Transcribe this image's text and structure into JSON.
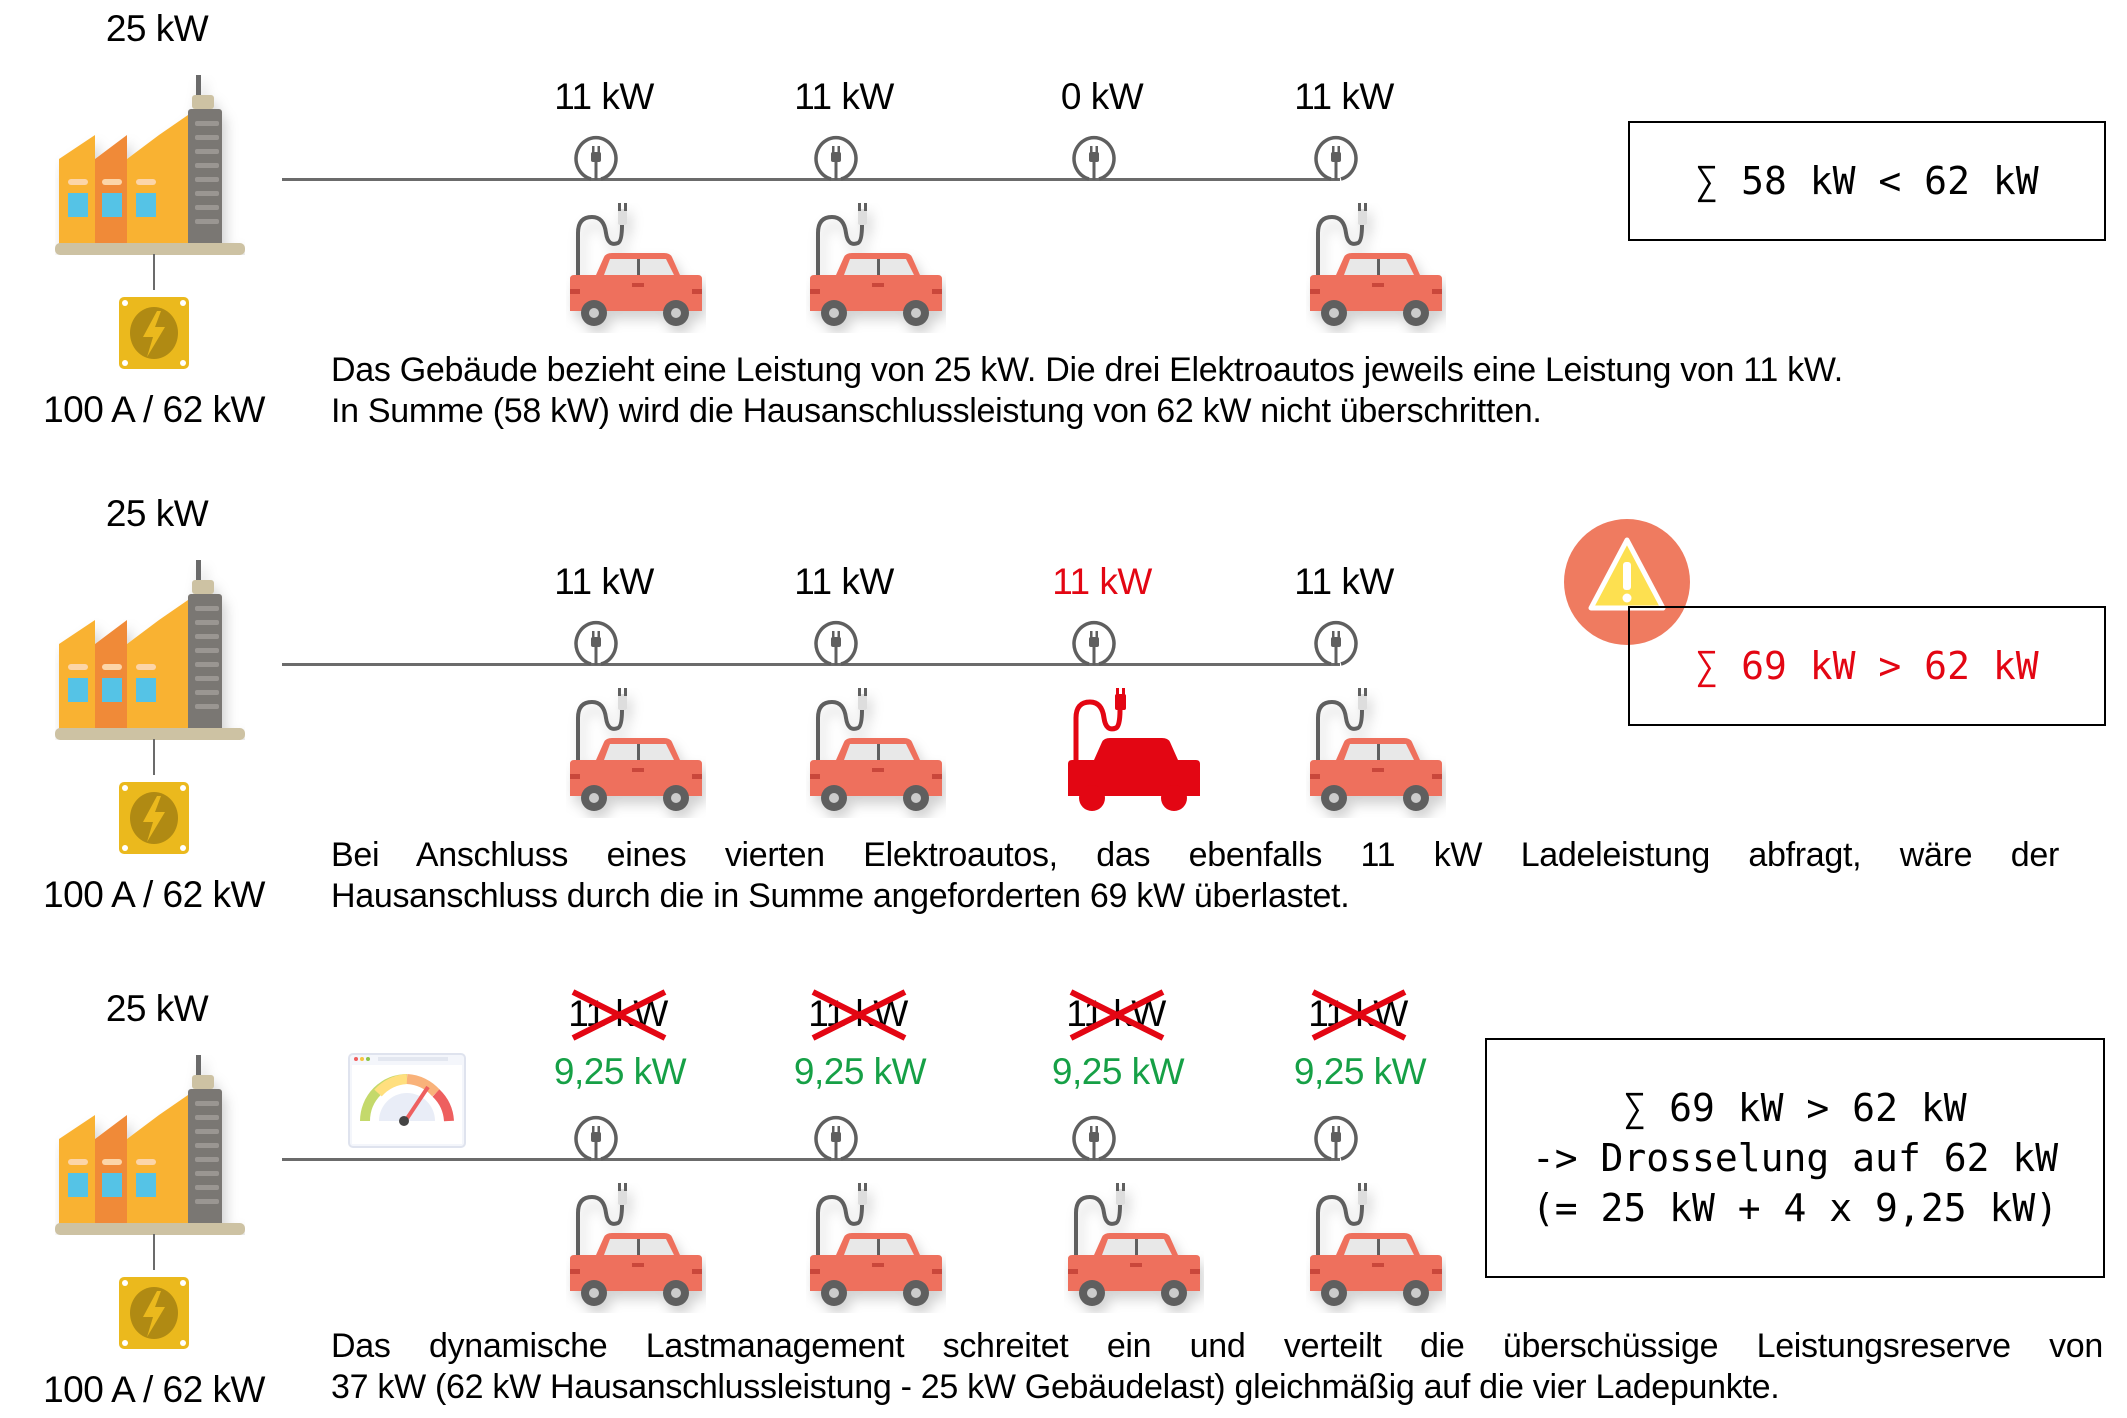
{
  "colors": {
    "car": "#ee6f5d",
    "overload": "#e30613",
    "throttled": "#16a046",
    "warning": "#ef7b60",
    "line": "#6b6b6b"
  },
  "rows": [
    {
      "building_load": "25 kW",
      "connection": "100 A / 62 kW",
      "chargers": [
        {
          "label": "11 kW",
          "state": "normal"
        },
        {
          "label": "11 kW",
          "state": "normal"
        },
        {
          "label": "0 kW",
          "state": "empty"
        },
        {
          "label": "11 kW",
          "state": "normal"
        }
      ],
      "summary": [
        "∑ 58 kW < 62 kW"
      ],
      "text": [
        "Das Gebäude bezieht eine Leistung von 25 kW. Die drei Elektroautos jeweils eine Leistung von 11 kW.",
        "In Summe (58 kW) wird die Hausanschlussleistung von 62 kW nicht überschritten."
      ]
    },
    {
      "building_load": "25 kW",
      "connection": "100 A / 62 kW",
      "chargers": [
        {
          "label": "11 kW",
          "state": "normal"
        },
        {
          "label": "11 kW",
          "state": "normal"
        },
        {
          "label": "11 kW",
          "state": "overload"
        },
        {
          "label": "11 kW",
          "state": "normal"
        }
      ],
      "summary": [
        "∑ 69 kW > 62 kW"
      ],
      "warning_icon": "warning-triangle",
      "text": [
        "Bei Anschluss eines vierten Elektroautos, das ebenfalls 11 kW Ladeleistung abfragt, wäre der",
        "Hausanschluss durch die in Summe angeforderten 69 kW überlastet."
      ]
    },
    {
      "building_load": "25 kW",
      "connection": "100 A / 62 kW",
      "load_manager_icon": "gauge-dashboard",
      "chargers": [
        {
          "label": "11 kW",
          "new_label": "9,25 kW",
          "state": "throttled"
        },
        {
          "label": "11 kW",
          "new_label": "9,25 kW",
          "state": "throttled"
        },
        {
          "label": "11 kW",
          "new_label": "9,25 kW",
          "state": "throttled"
        },
        {
          "label": "11 kW",
          "new_label": "9,25 kW",
          "state": "throttled"
        }
      ],
      "summary": [
        "∑ 69 kW > 62 kW",
        "-> Drosselung auf 62 kW",
        "(= 25 kW + 4 x 9,25 kW)"
      ],
      "text": [
        "Das dynamische Lastmanagement schreitet ein und verteilt die überschüssige Leistungsreserve von",
        "37 kW (62 kW Hausanschlussleistung - 25 kW Gebäudelast) gleichmäßig auf die vier Ladepunkte."
      ]
    }
  ]
}
